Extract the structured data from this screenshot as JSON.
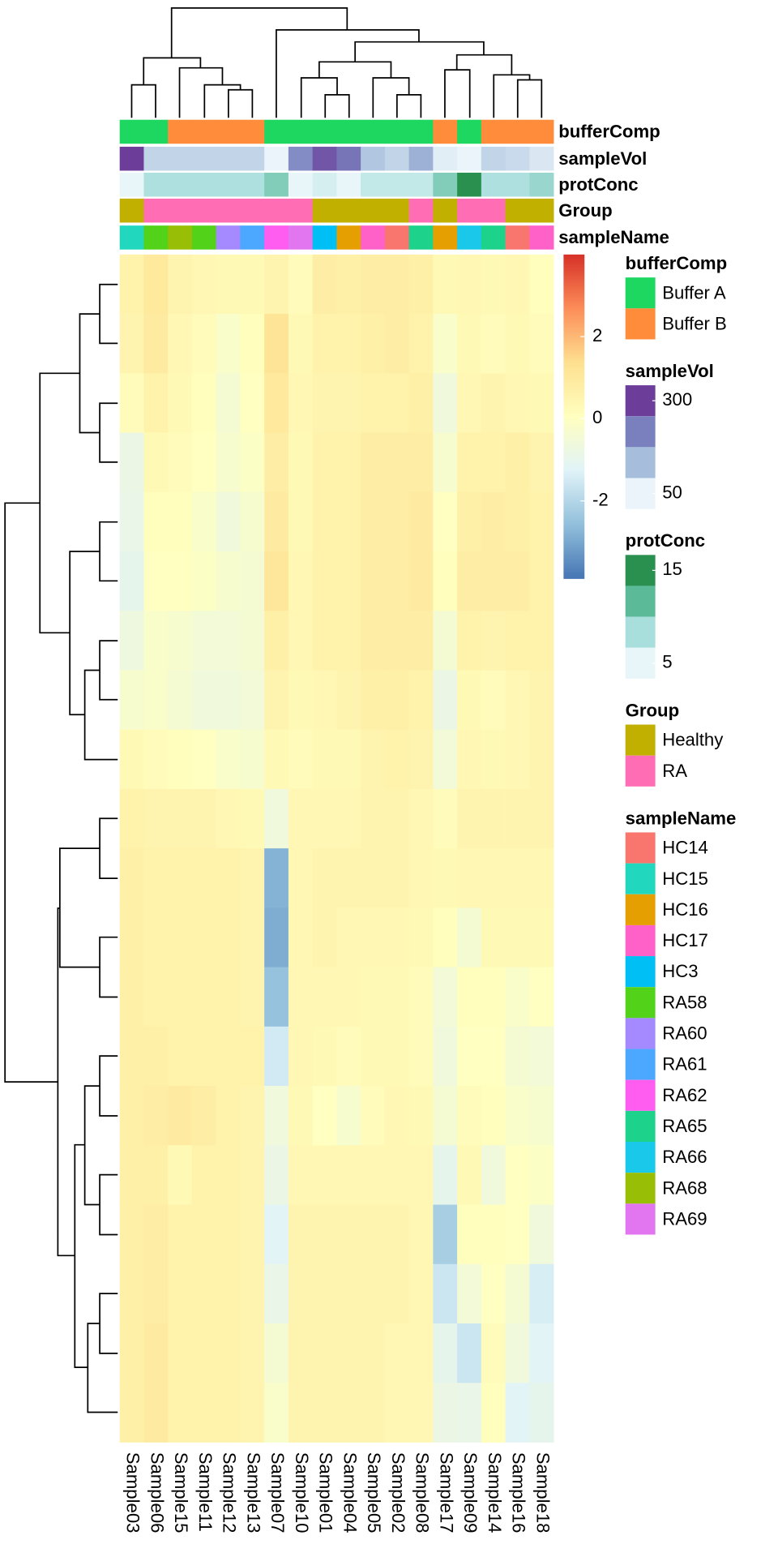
{
  "chart_data": {
    "type": "heatmap",
    "x": [
      "Sample03",
      "Sample06",
      "Sample15",
      "Sample11",
      "Sample12",
      "Sample13",
      "Sample07",
      "Sample10",
      "Sample01",
      "Sample04",
      "Sample05",
      "Sample02",
      "Sample08",
      "Sample17",
      "Sample09",
      "Sample14",
      "Sample16",
      "Sample18"
    ],
    "values": [
      [
        0.6,
        1.0,
        0.5,
        0.4,
        0.3,
        0.3,
        0.5,
        0.2,
        0.8,
        0.7,
        0.8,
        0.8,
        0.7,
        0.3,
        0.4,
        0.3,
        0.4,
        0.1
      ],
      [
        0.5,
        0.9,
        0.4,
        0.2,
        -0.2,
        0.1,
        1.2,
        0.3,
        0.6,
        0.6,
        0.7,
        0.8,
        0.6,
        -0.2,
        0.3,
        0.2,
        0.3,
        0.2
      ],
      [
        0.2,
        0.6,
        0.3,
        0.1,
        -0.4,
        0.0,
        1.0,
        0.4,
        0.5,
        0.5,
        0.6,
        0.6,
        0.7,
        -0.6,
        0.4,
        0.5,
        0.4,
        0.3
      ],
      [
        -0.8,
        0.3,
        0.2,
        0.0,
        -0.3,
        -0.1,
        0.8,
        0.3,
        0.6,
        0.6,
        0.8,
        0.8,
        0.8,
        -0.3,
        0.6,
        0.6,
        0.7,
        0.5
      ],
      [
        -0.9,
        0.1,
        0.1,
        -0.2,
        -0.6,
        -0.3,
        0.9,
        0.3,
        0.6,
        0.6,
        0.8,
        0.8,
        0.9,
        0.0,
        0.7,
        0.8,
        0.7,
        0.6
      ],
      [
        -1.0,
        0.0,
        0.0,
        -0.1,
        -0.3,
        -0.4,
        1.1,
        0.4,
        0.6,
        0.6,
        0.8,
        0.8,
        0.9,
        0.1,
        0.8,
        0.8,
        0.8,
        0.6
      ],
      [
        -0.7,
        -0.2,
        -0.3,
        -0.5,
        -0.5,
        -0.4,
        0.7,
        0.4,
        0.6,
        0.6,
        0.8,
        0.8,
        0.8,
        -0.4,
        0.6,
        0.5,
        0.6,
        0.6
      ],
      [
        -0.3,
        -0.2,
        -0.4,
        -0.6,
        -0.6,
        -0.5,
        0.5,
        0.3,
        0.4,
        0.5,
        0.7,
        0.7,
        0.6,
        -0.8,
        0.3,
        0.2,
        0.4,
        0.5
      ],
      [
        0.3,
        0.2,
        0.1,
        0.0,
        -0.2,
        -0.3,
        0.3,
        0.2,
        0.3,
        0.3,
        0.5,
        0.6,
        0.5,
        -0.5,
        0.4,
        0.3,
        0.4,
        0.5
      ],
      [
        0.6,
        0.5,
        0.5,
        0.5,
        0.4,
        0.3,
        -0.6,
        0.4,
        0.4,
        0.4,
        0.5,
        0.5,
        0.4,
        0.2,
        0.5,
        0.5,
        0.5,
        0.5
      ],
      [
        0.7,
        0.6,
        0.6,
        0.6,
        0.6,
        0.5,
        -2.8,
        0.4,
        0.5,
        0.5,
        0.5,
        0.5,
        0.4,
        0.3,
        0.4,
        0.4,
        0.4,
        0.4
      ],
      [
        0.7,
        0.6,
        0.6,
        0.6,
        0.6,
        0.5,
        -2.9,
        0.4,
        0.5,
        0.4,
        0.4,
        0.4,
        0.3,
        0.1,
        -0.4,
        0.3,
        0.3,
        0.3
      ],
      [
        0.7,
        0.6,
        0.6,
        0.6,
        0.6,
        0.5,
        -2.5,
        0.4,
        0.4,
        0.4,
        0.3,
        0.3,
        0.2,
        -0.5,
        0.1,
        0.1,
        -0.2,
        0.0
      ],
      [
        0.7,
        0.7,
        0.6,
        0.6,
        0.6,
        0.6,
        -1.5,
        0.4,
        0.3,
        0.2,
        0.3,
        0.3,
        0.2,
        -0.6,
        0.0,
        0.0,
        -0.4,
        -0.5
      ],
      [
        0.7,
        0.8,
        0.9,
        0.8,
        0.6,
        0.5,
        -0.6,
        0.3,
        0.0,
        -0.3,
        0.2,
        0.4,
        0.3,
        -0.4,
        0.2,
        0.1,
        -0.2,
        -0.3
      ],
      [
        0.7,
        0.7,
        0.3,
        0.6,
        0.6,
        0.5,
        -0.8,
        0.4,
        0.4,
        0.4,
        0.4,
        0.4,
        0.4,
        -1.0,
        0.3,
        -0.6,
        0.0,
        -0.1
      ],
      [
        0.7,
        0.8,
        0.6,
        0.6,
        0.6,
        0.5,
        -1.2,
        0.5,
        0.5,
        0.5,
        0.5,
        0.5,
        0.4,
        -2.2,
        0.1,
        0.1,
        0.0,
        -0.6
      ],
      [
        0.7,
        0.8,
        0.6,
        0.6,
        0.6,
        0.5,
        -0.9,
        0.5,
        0.5,
        0.5,
        0.5,
        0.5,
        0.4,
        -1.6,
        -0.5,
        0.0,
        -0.4,
        -1.4
      ],
      [
        0.7,
        0.9,
        0.6,
        0.6,
        0.6,
        0.5,
        -0.4,
        0.5,
        0.5,
        0.5,
        0.5,
        0.4,
        0.4,
        -1.0,
        -1.6,
        0.2,
        -0.6,
        -1.2
      ],
      [
        0.7,
        0.9,
        0.6,
        0.6,
        0.6,
        0.5,
        -0.2,
        0.5,
        0.5,
        0.5,
        0.5,
        0.4,
        0.4,
        -0.8,
        -0.9,
        0.1,
        -1.2,
        -1.0
      ]
    ],
    "zlim": [
      -3.9,
      4
    ],
    "zticks": [
      2,
      0,
      -2
    ],
    "colorscale": [
      "#4575B4",
      "#91BFDB",
      "#E0F3F8",
      "#FFFFBF",
      "#FEE090",
      "#FC8D59",
      "#D73027"
    ],
    "annotations": [
      {
        "name": "bufferComp",
        "kind": "categorical",
        "levels": [
          "Buffer A",
          "Buffer B"
        ],
        "colors": [
          "#1ED760",
          "#FF8C3A"
        ],
        "values": [
          "Buffer A",
          "Buffer A",
          "Buffer B",
          "Buffer B",
          "Buffer B",
          "Buffer B",
          "Buffer A",
          "Buffer A",
          "Buffer A",
          "Buffer A",
          "Buffer A",
          "Buffer A",
          "Buffer A",
          "Buffer B",
          "Buffer A",
          "Buffer B",
          "Buffer B",
          "Buffer B"
        ]
      },
      {
        "name": "sampleVol",
        "kind": "continuous",
        "lim": [
          50,
          300
        ],
        "ticks": [
          300,
          50
        ],
        "colors": [
          "#EAF4FA",
          "#A6BEDC",
          "#7A7FBE",
          "#6C3D99"
        ],
        "values": [
          300,
          100,
          100,
          100,
          100,
          100,
          50,
          200,
          270,
          230,
          120,
          100,
          150,
          60,
          50,
          100,
          90,
          70
        ]
      },
      {
        "name": "protConc",
        "kind": "continuous",
        "lim": [
          5,
          15
        ],
        "ticks": [
          15,
          5
        ],
        "colors": [
          "#E8F6F9",
          "#A8DEDC",
          "#5BBA98",
          "#2A9050"
        ],
        "values": [
          5,
          8,
          8,
          8,
          8,
          8,
          10,
          5,
          6,
          5,
          7,
          7,
          7,
          10,
          15,
          8,
          8,
          9
        ]
      },
      {
        "name": "Group",
        "kind": "categorical",
        "levels": [
          "Healthy",
          "RA"
        ],
        "colors": [
          "#C2B000",
          "#FF6EB4"
        ],
        "values": [
          "Healthy",
          "RA",
          "RA",
          "RA",
          "RA",
          "RA",
          "RA",
          "RA",
          "Healthy",
          "Healthy",
          "Healthy",
          "Healthy",
          "RA",
          "Healthy",
          "RA",
          "RA",
          "Healthy",
          "Healthy"
        ]
      },
      {
        "name": "sampleName",
        "kind": "categorical",
        "levels": [
          "HC14",
          "HC15",
          "HC16",
          "HC17",
          "HC3",
          "RA58",
          "RA60",
          "RA61",
          "RA62",
          "RA65",
          "RA66",
          "RA68",
          "RA69"
        ],
        "colors": [
          "#F8766D",
          "#21D7BE",
          "#E69F00",
          "#FF61C9",
          "#00BFF4",
          "#53D21A",
          "#A58AFF",
          "#4CA8FF",
          "#FF5CF0",
          "#1DD38C",
          "#1AC8EA",
          "#98BE05",
          "#E275F0"
        ],
        "values": [
          "HC15",
          "RA58",
          "RA68",
          "RA58",
          "RA60",
          "RA61",
          "RA62",
          "RA69",
          "HC3",
          "HC16",
          "HC17",
          "HC14",
          "RA65",
          "HC16",
          "RA66",
          "RA65",
          "HC14",
          "HC17"
        ]
      }
    ]
  }
}
